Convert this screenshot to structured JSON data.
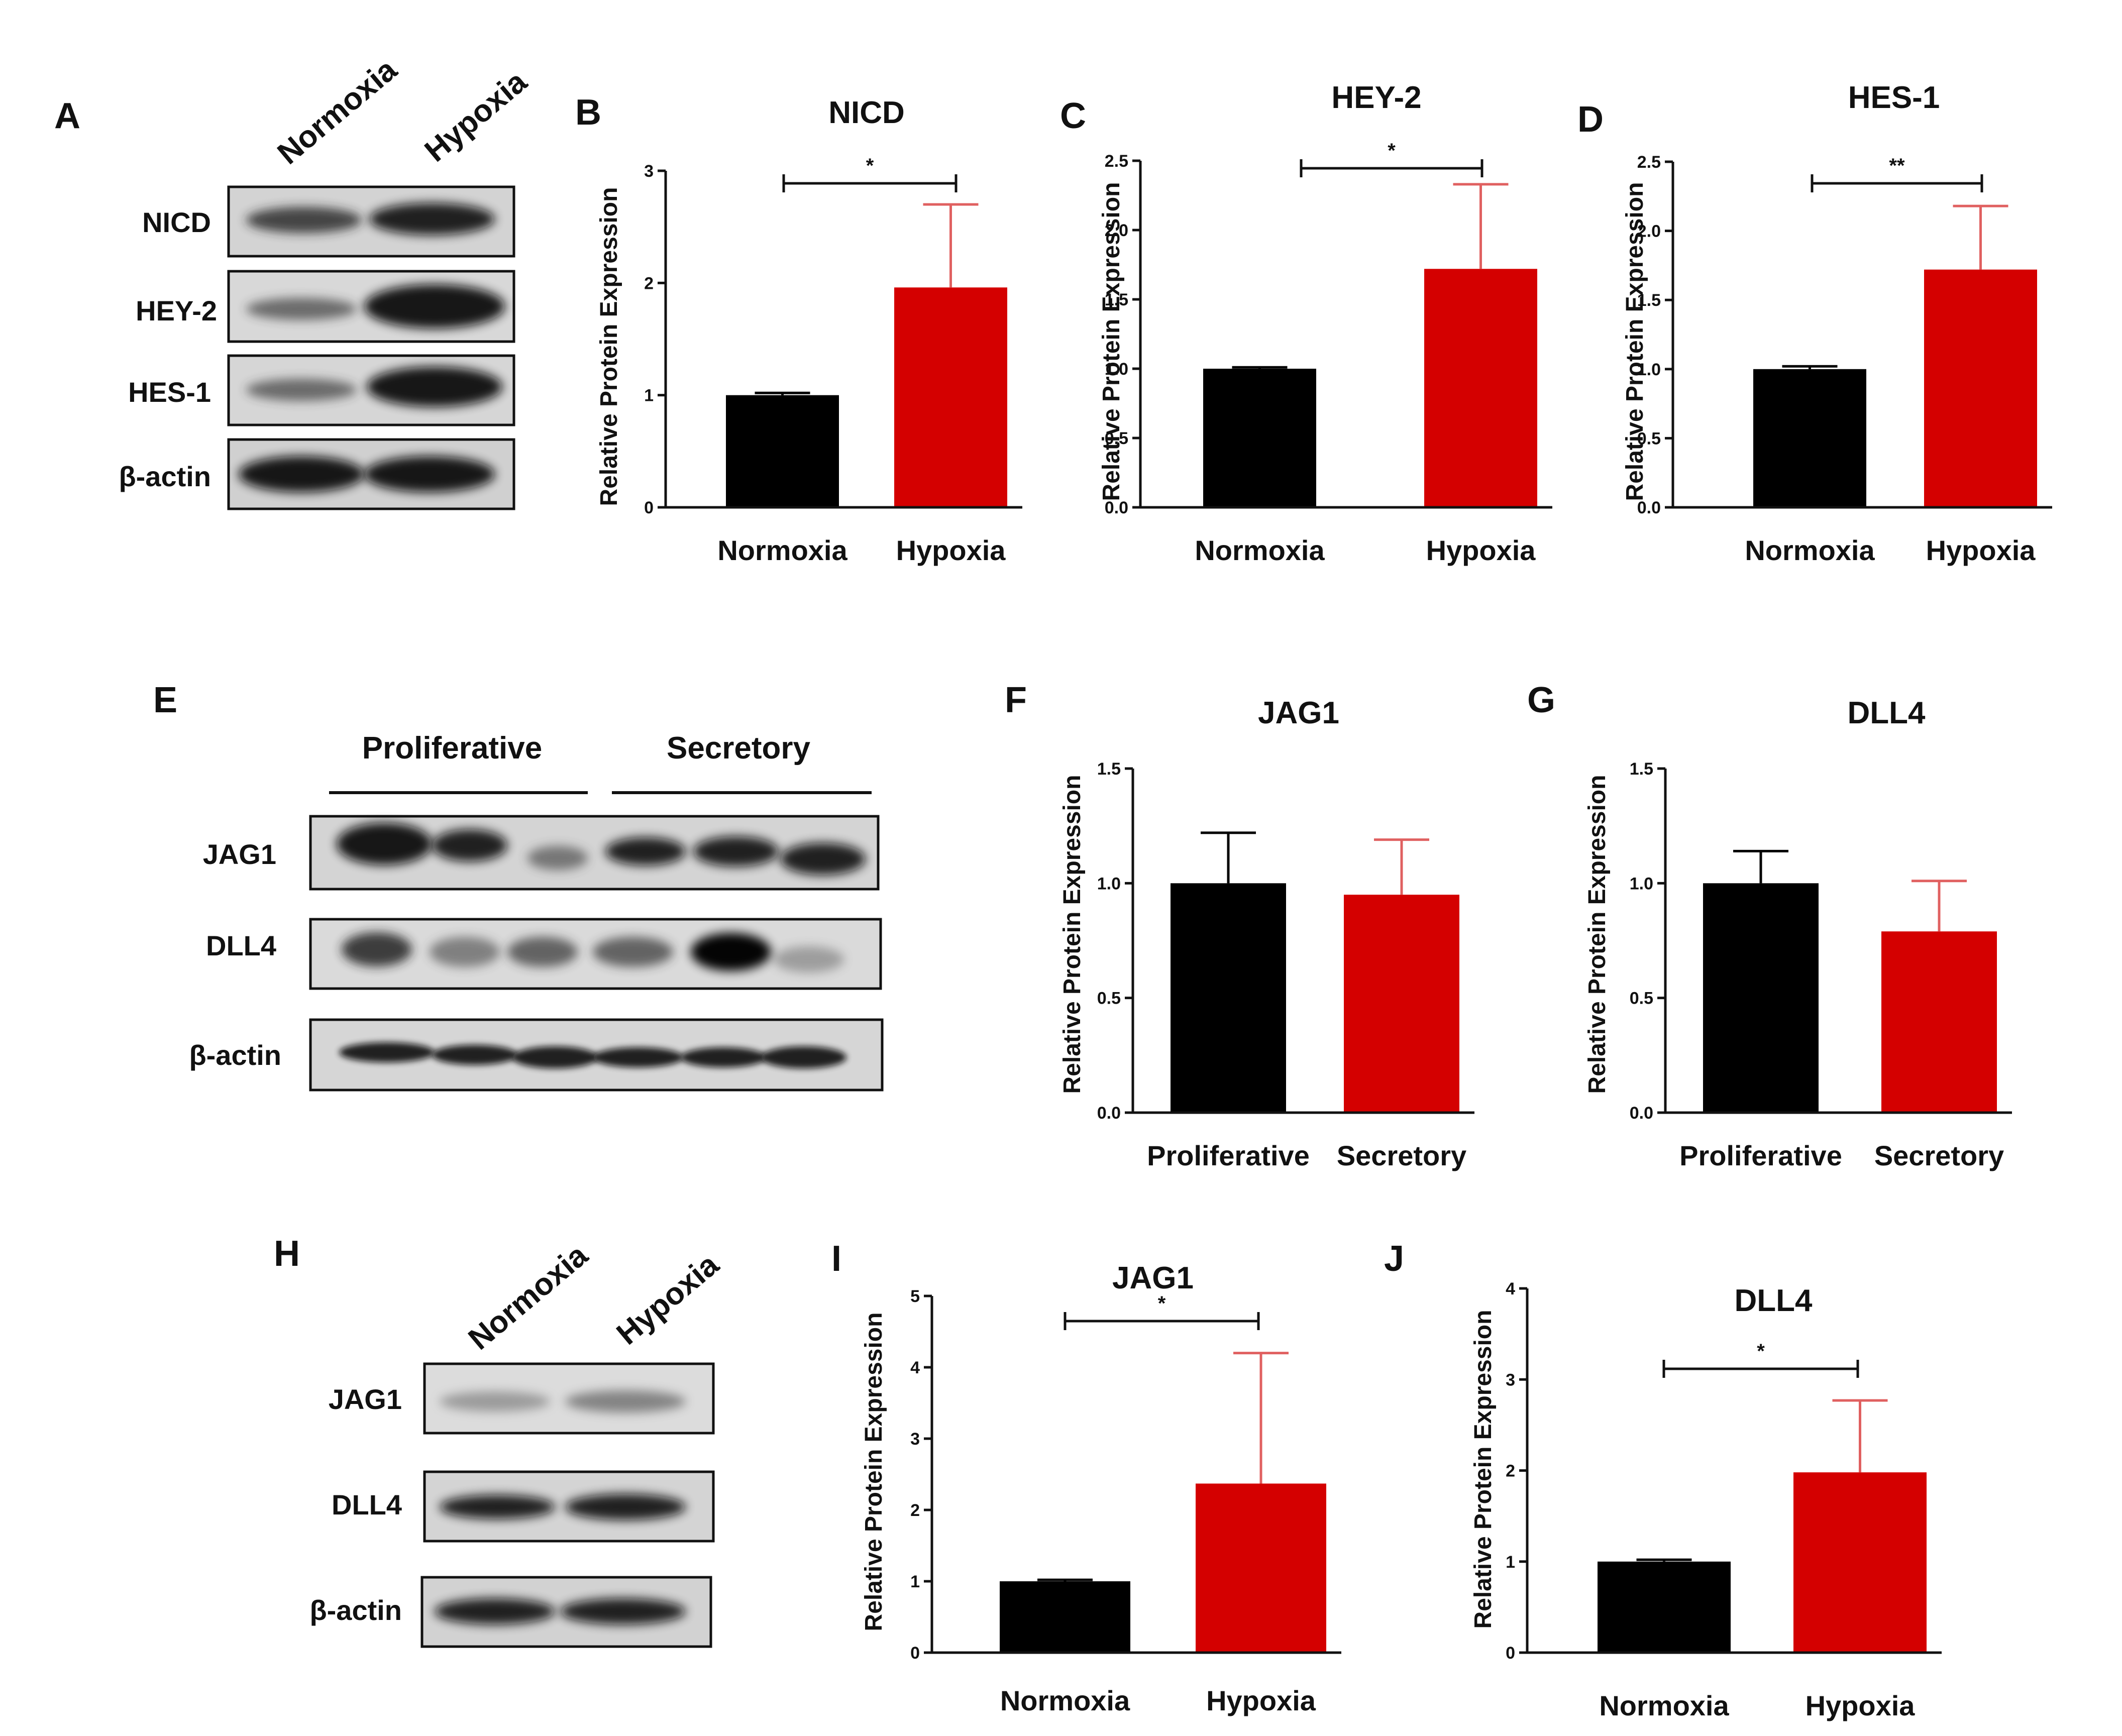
{
  "panels": {
    "A": "A",
    "B": "B",
    "C": "C",
    "D": "D",
    "E": "E",
    "F": "F",
    "G": "G",
    "H": "H",
    "I": "I",
    "J": "J"
  },
  "blot_A": {
    "columns": [
      "Normoxia",
      "Hypoxia"
    ],
    "rows": [
      "NICD",
      "HEY-2",
      "HES-1",
      "β-actin"
    ]
  },
  "blot_E": {
    "groups": [
      "Proliferative",
      "Secretory"
    ],
    "rows": [
      "JAG1",
      "DLL4",
      "β-actin"
    ]
  },
  "blot_H": {
    "columns": [
      "Normoxia",
      "Hypoxia"
    ],
    "rows": [
      "JAG1",
      "DLL4",
      "β-actin"
    ]
  },
  "colors": {
    "control": "#000000",
    "treated": "#d40000",
    "error_treated": "#e06060"
  },
  "chart_data": [
    {
      "id": "B",
      "type": "bar",
      "title": "NICD",
      "ylabel": "Relative Protein Expression",
      "categories": [
        "Normoxia",
        "Hypoxia"
      ],
      "values": [
        1.0,
        1.96
      ],
      "errors": [
        0.02,
        0.74
      ],
      "ylim": [
        0,
        3
      ],
      "yticks": [
        "0",
        "1",
        "2",
        "3"
      ],
      "significance": "*"
    },
    {
      "id": "C",
      "type": "bar",
      "title": "HEY-2",
      "ylabel": "Relative Protein Expression",
      "categories": [
        "Normoxia",
        "Hypoxia"
      ],
      "values": [
        1.0,
        1.72
      ],
      "errors": [
        0.01,
        0.61
      ],
      "ylim": [
        0,
        2.5
      ],
      "yticks": [
        "0.0",
        "0.5",
        "1.0",
        "1.5",
        "2.0",
        "2.5"
      ],
      "significance": "*"
    },
    {
      "id": "D",
      "type": "bar",
      "title": "HES-1",
      "ylabel": "Relative Protein Expression",
      "categories": [
        "Normoxia",
        "Hypoxia"
      ],
      "values": [
        1.0,
        1.72
      ],
      "errors": [
        0.02,
        0.46
      ],
      "ylim": [
        0,
        2.5
      ],
      "yticks": [
        "0.0",
        "0.5",
        "1.0",
        "1.5",
        "2.0",
        "2.5"
      ],
      "significance": "**"
    },
    {
      "id": "F",
      "type": "bar",
      "title": "JAG1",
      "ylabel": "Relative Protein Expression",
      "categories": [
        "Proliferative",
        "Secretory"
      ],
      "values": [
        1.0,
        0.95
      ],
      "errors": [
        0.22,
        0.24
      ],
      "ylim": [
        0,
        1.5
      ],
      "yticks": [
        "0.0",
        "0.5",
        "1.0",
        "1.5"
      ],
      "significance": ""
    },
    {
      "id": "G",
      "type": "bar",
      "title": "DLL4",
      "ylabel": "Relative Protein Expression",
      "categories": [
        "Proliferative",
        "Secretory"
      ],
      "values": [
        1.0,
        0.79
      ],
      "errors": [
        0.14,
        0.22
      ],
      "ylim": [
        0,
        1.5
      ],
      "yticks": [
        "0.0",
        "0.5",
        "1.0",
        "1.5"
      ],
      "significance": ""
    },
    {
      "id": "I",
      "type": "bar",
      "title": "JAG1",
      "ylabel": "Relative Protein Expression",
      "categories": [
        "Normoxia",
        "Hypoxia"
      ],
      "values": [
        1.0,
        2.37
      ],
      "errors": [
        0.02,
        1.83
      ],
      "ylim": [
        0,
        5
      ],
      "yticks": [
        "0",
        "1",
        "2",
        "3",
        "4",
        "5"
      ],
      "significance": "*"
    },
    {
      "id": "J",
      "type": "bar",
      "title": "DLL4",
      "ylabel": "Relative Protein Expression",
      "categories": [
        "Normoxia",
        "Hypoxia"
      ],
      "values": [
        1.0,
        1.98
      ],
      "errors": [
        0.02,
        0.79
      ],
      "ylim": [
        0,
        4
      ],
      "yticks": [
        "0",
        "1",
        "2",
        "3",
        "4"
      ],
      "significance": "*"
    }
  ]
}
